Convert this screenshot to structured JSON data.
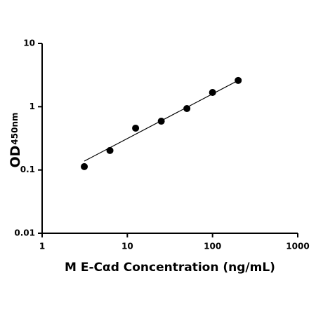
{
  "chart_data": {
    "type": "scatter",
    "x_label": "M E-Cαd Concentration (ng/mL)",
    "y_label": "OD",
    "y_label_sub": "450nm",
    "x": [
      3.125,
      6.25,
      12.5,
      25,
      50,
      100,
      200
    ],
    "values": [
      0.113,
      0.203,
      0.458,
      0.59,
      0.935,
      1.68,
      2.6
    ],
    "color": "#000000",
    "fit": {
      "x": [
        3.125,
        200
      ],
      "values": [
        0.138,
        2.6
      ]
    },
    "xlog": true,
    "ylog": true,
    "xlim": [
      1,
      1000
    ],
    "ylim": [
      0.01,
      10
    ],
    "xticks": [
      1,
      10,
      100,
      1000
    ],
    "yticks": [
      0.01,
      0.1,
      1,
      10
    ]
  }
}
